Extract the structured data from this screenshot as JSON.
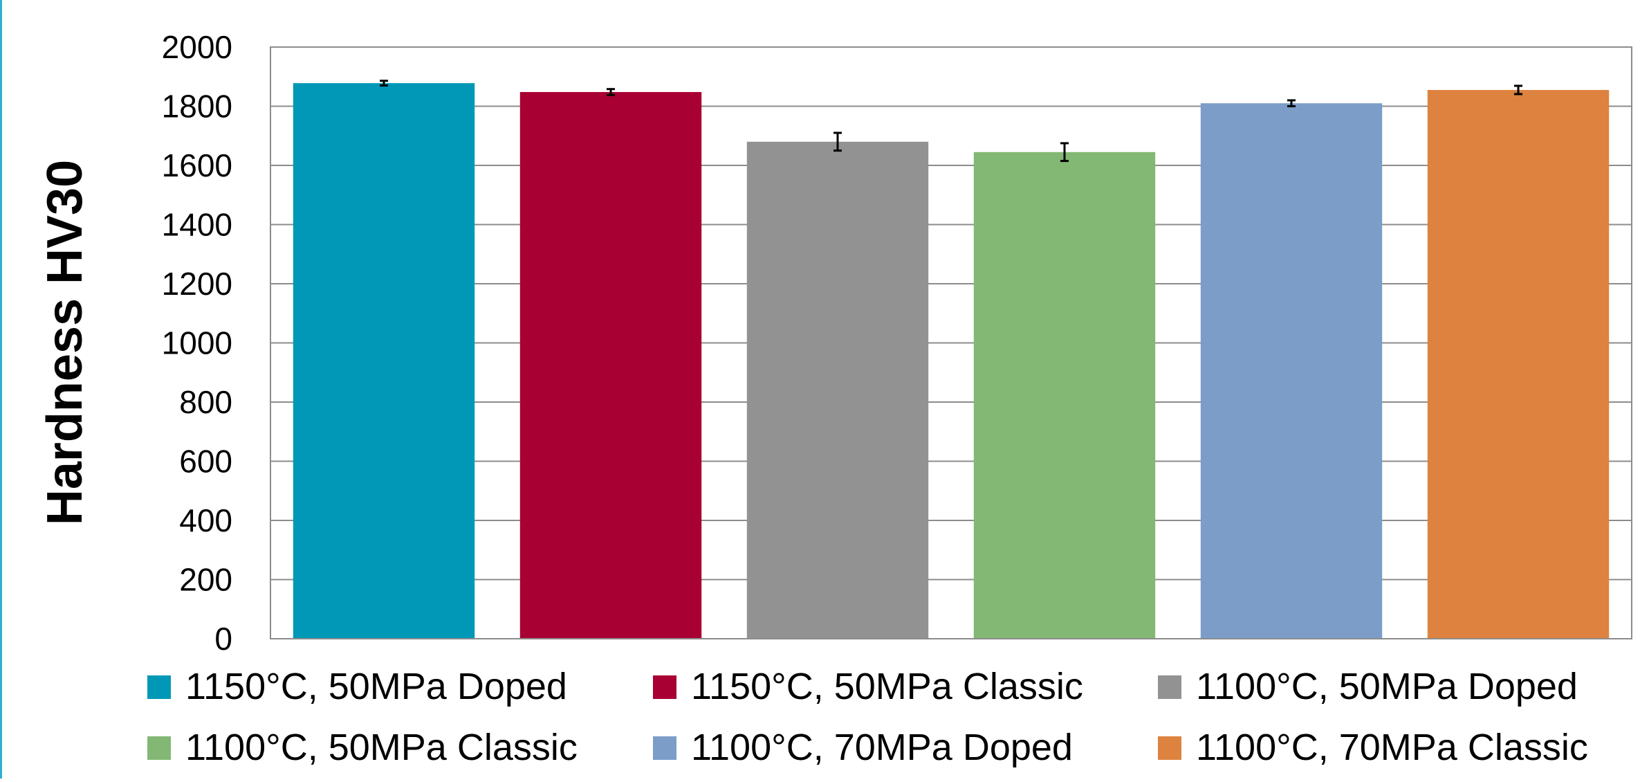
{
  "chart_data": {
    "type": "bar",
    "title": "",
    "xlabel": "",
    "ylabel": "Hardness HV30",
    "ylim": [
      0,
      2000
    ],
    "yticks": [
      0,
      200,
      400,
      600,
      800,
      1000,
      1200,
      1400,
      1600,
      1800,
      2000
    ],
    "grid": true,
    "legend_position": "bottom",
    "series": [
      {
        "name": "1150°C, 50MPa Doped",
        "value": 1878,
        "error": 8,
        "color": "#0098b6"
      },
      {
        "name": "1150°C, 50MPa Classic",
        "value": 1848,
        "error": 10,
        "color": "#a90033"
      },
      {
        "name": "1100°C, 50MPa Doped",
        "value": 1680,
        "error": 30,
        "color": "#929292"
      },
      {
        "name": "1100°C, 50MPa Classic",
        "value": 1645,
        "error": 30,
        "color": "#83b874"
      },
      {
        "name": "1100°C, 70MPa Doped",
        "value": 1810,
        "error": 10,
        "color": "#7b9dc8"
      },
      {
        "name": "1100°C, 70MPa Classic",
        "value": 1855,
        "error": 14,
        "color": "#dd833f"
      }
    ]
  }
}
